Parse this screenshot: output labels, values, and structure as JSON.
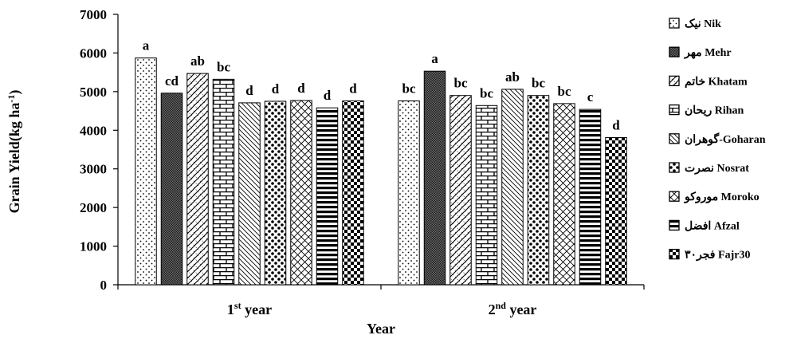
{
  "chart_data": {
    "type": "bar",
    "ylabel": "Grain Yield(kg ha",
    "ylabel_sup": "-1",
    "ylabel_close": ")",
    "xlabel": "Year",
    "ylim": [
      0,
      7000
    ],
    "yticks": [
      "0",
      "1000",
      "2000",
      "3000",
      "4000",
      "5000",
      "6000",
      "7000"
    ],
    "categories": [
      {
        "label": "1",
        "sup": "st",
        "rest": " year"
      },
      {
        "label": "2",
        "sup": "nd",
        "rest": " year"
      }
    ],
    "legend_position": "right",
    "series": [
      {
        "name": "نیک Nik",
        "pattern": "dots",
        "values": [
          5870,
          4760
        ],
        "letters": [
          "a",
          "bc"
        ]
      },
      {
        "name": "مهر Mehr",
        "pattern": "dense",
        "values": [
          4960,
          5530
        ],
        "letters": [
          "cd",
          "a"
        ]
      },
      {
        "name": "خاتم Khatam",
        "pattern": "wave",
        "values": [
          5470,
          4900
        ],
        "letters": [
          "ab",
          "bc"
        ]
      },
      {
        "name": "ریحان Rihan",
        "pattern": "brick",
        "values": [
          5320,
          4640
        ],
        "letters": [
          "bc",
          "bc"
        ]
      },
      {
        "name": "گوهران-Goharan",
        "pattern": "diag",
        "values": [
          4710,
          5060
        ],
        "letters": [
          "d",
          "ab"
        ]
      },
      {
        "name": "نصرت Nosrat",
        "pattern": "bigdots",
        "values": [
          4750,
          4900
        ],
        "letters": [
          "d",
          "bc"
        ]
      },
      {
        "name": "موروکو Moroko",
        "pattern": "cross",
        "values": [
          4770,
          4690
        ],
        "letters": [
          "d",
          "bc"
        ]
      },
      {
        "name": "افضل Afzal",
        "pattern": "hstripes",
        "values": [
          4580,
          4540
        ],
        "letters": [
          "d",
          "c"
        ]
      },
      {
        "name": "فجر۳۰ Fajr30",
        "pattern": "checker",
        "values": [
          4760,
          3810
        ],
        "letters": [
          "d",
          "d"
        ]
      }
    ]
  }
}
